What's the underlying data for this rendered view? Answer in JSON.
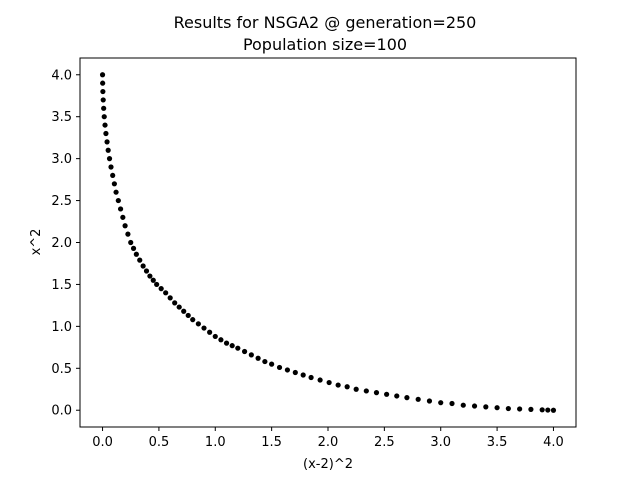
{
  "chart_data": {
    "type": "scatter",
    "title_line1": "Results for NSGA2 @ generation=250",
    "title_line2": "Population size=100",
    "xlabel": "(x-2)^2",
    "ylabel": "x^2",
    "xlim": [
      -0.2,
      4.2
    ],
    "ylim": [
      -0.2,
      4.2
    ],
    "xticks": [
      0.0,
      0.5,
      1.0,
      1.5,
      2.0,
      2.5,
      3.0,
      3.5,
      4.0
    ],
    "yticks": [
      0.0,
      0.5,
      1.0,
      1.5,
      2.0,
      2.5,
      3.0,
      3.5,
      4.0
    ],
    "xtick_labels": [
      "0.0",
      "0.5",
      "1.0",
      "1.5",
      "2.0",
      "2.5",
      "3.0",
      "3.5",
      "4.0"
    ],
    "ytick_labels": [
      "0.0",
      "0.5",
      "1.0",
      "1.5",
      "2.0",
      "2.5",
      "3.0",
      "3.5",
      "4.0"
    ],
    "grid": false,
    "marker_color": "#000000",
    "series": [
      {
        "x": [
          0.0,
          0.001,
          0.003,
          0.006,
          0.01,
          0.015,
          0.022,
          0.03,
          0.04,
          0.05,
          0.062,
          0.075,
          0.09,
          0.105,
          0.12,
          0.14,
          0.16,
          0.18,
          0.2,
          0.225,
          0.25,
          0.275,
          0.3,
          0.33,
          0.36,
          0.39,
          0.42,
          0.45,
          0.48,
          0.52,
          0.56,
          0.6,
          0.64,
          0.68,
          0.72,
          0.76,
          0.8,
          0.85,
          0.9,
          0.95,
          1.0,
          1.05,
          1.1,
          1.15,
          1.2,
          1.26,
          1.32,
          1.38,
          1.44,
          1.5,
          1.57,
          1.64,
          1.71,
          1.78,
          1.85,
          1.93,
          2.01,
          2.09,
          2.17,
          2.25,
          2.34,
          2.43,
          2.52,
          2.61,
          2.7,
          2.8,
          2.9,
          3.0,
          3.1,
          3.2,
          3.3,
          3.4,
          3.5,
          3.6,
          3.7,
          3.8,
          3.9,
          3.95,
          4.0
        ],
        "y": [
          4.0,
          3.9,
          3.8,
          3.7,
          3.6,
          3.5,
          3.4,
          3.3,
          3.2,
          3.1,
          3.0,
          2.9,
          2.8,
          2.7,
          2.6,
          2.5,
          2.4,
          2.3,
          2.2,
          2.1,
          2.0,
          1.93,
          1.86,
          1.79,
          1.72,
          1.66,
          1.6,
          1.55,
          1.5,
          1.45,
          1.4,
          1.34,
          1.28,
          1.23,
          1.18,
          1.13,
          1.08,
          1.03,
          0.98,
          0.93,
          0.88,
          0.84,
          0.8,
          0.77,
          0.74,
          0.7,
          0.66,
          0.62,
          0.58,
          0.55,
          0.51,
          0.48,
          0.45,
          0.42,
          0.39,
          0.36,
          0.33,
          0.3,
          0.28,
          0.25,
          0.23,
          0.21,
          0.19,
          0.17,
          0.15,
          0.13,
          0.11,
          0.09,
          0.08,
          0.06,
          0.05,
          0.04,
          0.03,
          0.02,
          0.015,
          0.01,
          0.005,
          0.002,
          0.0
        ]
      }
    ]
  }
}
